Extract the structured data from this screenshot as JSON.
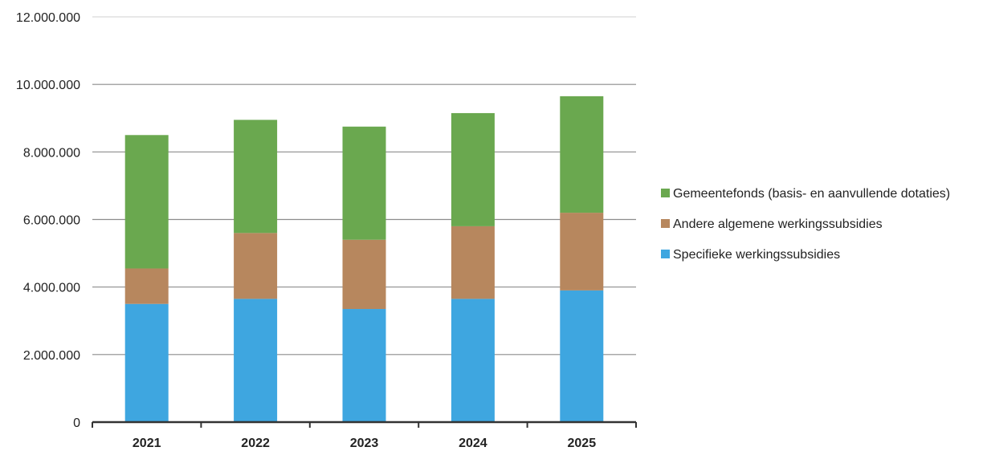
{
  "chart_data": {
    "type": "bar",
    "stacked": true,
    "categories": [
      "2021",
      "2022",
      "2023",
      "2024",
      "2025"
    ],
    "series": [
      {
        "name": "Specifieke werkingssubsidies",
        "color": "#3ea6e0",
        "values": [
          3500000,
          3650000,
          3350000,
          3650000,
          3900000
        ]
      },
      {
        "name": "Andere algemene werkingssubsidies",
        "color": "#b7875e",
        "values": [
          1050000,
          1950000,
          2050000,
          2150000,
          2300000
        ]
      },
      {
        "name": "Gemeentefonds (basis- en aanvullende dotaties)",
        "color": "#6aa84f",
        "values": [
          3950000,
          3350000,
          3350000,
          3350000,
          3450000
        ]
      }
    ],
    "ylim": [
      0,
      12000000
    ],
    "yticks": [
      0,
      2000000,
      4000000,
      6000000,
      8000000,
      10000000,
      12000000
    ],
    "ytick_labels": [
      "0",
      "2.000.000",
      "4.000.000",
      "6.000.000",
      "8.000.000",
      "10.000.000",
      "12.000.000"
    ],
    "grid": true,
    "legend_position": "right",
    "legend_order": [
      2,
      1,
      0
    ],
    "title": "",
    "xlabel": "",
    "ylabel": ""
  }
}
